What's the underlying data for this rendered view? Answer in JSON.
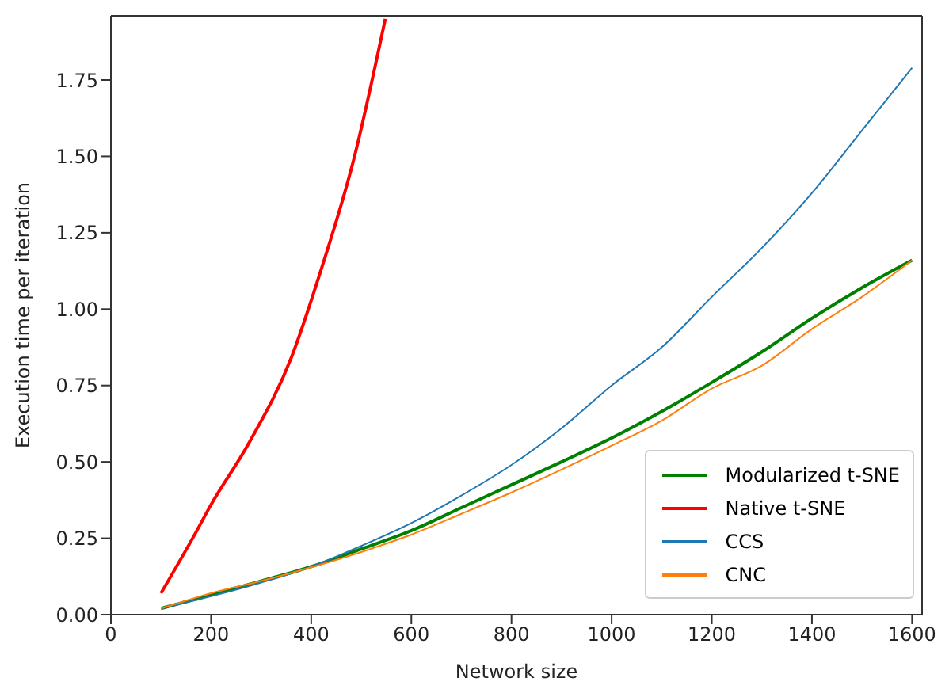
{
  "chart_data": {
    "type": "line",
    "xlabel": "Network size",
    "ylabel": "Execution time per iteration",
    "xlim": [
      0,
      1620
    ],
    "ylim": [
      0,
      1.96
    ],
    "xticks": [
      0,
      200,
      400,
      600,
      800,
      1000,
      1200,
      1400,
      1600
    ],
    "yticks": [
      {
        "value": 0,
        "label": "0.00"
      },
      {
        "value": 0.25,
        "label": "0.25"
      },
      {
        "value": 0.5,
        "label": "0.50"
      },
      {
        "value": 0.75,
        "label": "0.75"
      },
      {
        "value": 1,
        "label": "1.00"
      },
      {
        "value": 1.25,
        "label": "1.25"
      },
      {
        "value": 1.5,
        "label": "1.50"
      },
      {
        "value": 1.75,
        "label": "1.75"
      }
    ],
    "grid": false,
    "legend": "bottom right",
    "marker": "none",
    "line_style": "solid",
    "series": [
      {
        "name": "Modularized t-SNE",
        "color": "#008000",
        "x": [
          100,
          200,
          300,
          400,
          500,
          600,
          700,
          800,
          900,
          1000,
          1100,
          1200,
          1300,
          1400,
          1500,
          1600
        ],
        "values": [
          0.02,
          0.065,
          0.11,
          0.157,
          0.215,
          0.275,
          0.35,
          0.425,
          0.5,
          0.578,
          0.665,
          0.76,
          0.86,
          0.97,
          1.07,
          1.16
        ]
      },
      {
        "name": "Native t-SNE",
        "color": "#ff0000",
        "x": [
          100,
          170,
          200,
          275,
          360,
          420,
          485,
          548
        ],
        "values": [
          0.07,
          0.27,
          0.36,
          0.56,
          0.84,
          1.13,
          1.49,
          1.95
        ]
      },
      {
        "name": "CCS",
        "color": "#1f77b4",
        "x": [
          100,
          200,
          300,
          400,
          500,
          600,
          700,
          800,
          900,
          1000,
          1100,
          1200,
          1300,
          1400,
          1500,
          1600
        ],
        "values": [
          0.02,
          0.06,
          0.105,
          0.157,
          0.225,
          0.3,
          0.39,
          0.49,
          0.61,
          0.75,
          0.875,
          1.04,
          1.2,
          1.38,
          1.585,
          1.79
        ]
      },
      {
        "name": "CNC",
        "color": "#ff7f0e",
        "x": [
          100,
          200,
          300,
          400,
          500,
          600,
          700,
          800,
          900,
          1000,
          1100,
          1200,
          1300,
          1400,
          1500,
          1600
        ],
        "values": [
          0.02,
          0.07,
          0.11,
          0.155,
          0.205,
          0.262,
          0.33,
          0.4,
          0.475,
          0.553,
          0.635,
          0.74,
          0.815,
          0.935,
          1.04,
          1.16
        ]
      }
    ]
  }
}
